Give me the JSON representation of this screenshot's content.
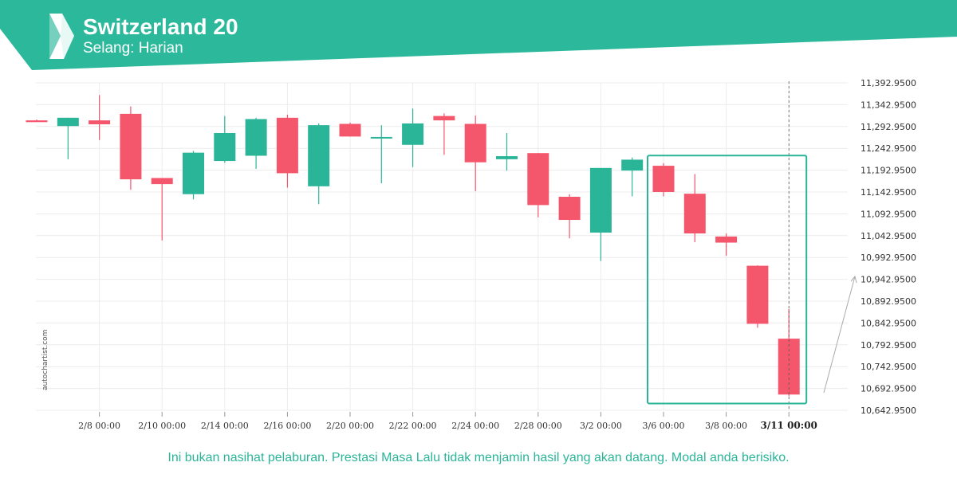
{
  "header": {
    "title": "Switzerland 20",
    "subtitle": "Selang: Harian",
    "brand_color": "#2cb99b",
    "logo_icon": "autochartist-logo-icon"
  },
  "watermark": "autochartist.com",
  "disclaimer": "Ini bukan nasihat pelaburan. Prestasi Masa Lalu tidak menjamin hasil yang akan datang. Modal anda berisiko.",
  "chart_data": {
    "type": "candlestick",
    "title": "Switzerland 20",
    "subtitle": "Selang: Harian",
    "colors": {
      "up": "#2ab598",
      "down": "#f4566c",
      "grid": "#ececec",
      "highlight": "#2ab598"
    },
    "y_ticks": [
      "11,392.9500",
      "11,342.9500",
      "11,292.9500",
      "11,242.9500",
      "11,192.9500",
      "11,142.9500",
      "11,092.9500",
      "11,042.9500",
      "10,992.9500",
      "10,942.9500",
      "10,892.9500",
      "10,842.9500",
      "10,792.9500",
      "10,742.9500",
      "10,692.9500",
      "10,642.9500"
    ],
    "ylim": [
      10642.95,
      11392.95
    ],
    "x_ticks": [
      {
        "label": "2/8 00:00",
        "index": 2
      },
      {
        "label": "2/10 00:00",
        "index": 4
      },
      {
        "label": "2/14 00:00",
        "index": 6
      },
      {
        "label": "2/16 00:00",
        "index": 8
      },
      {
        "label": "2/20 00:00",
        "index": 10
      },
      {
        "label": "2/22 00:00",
        "index": 12
      },
      {
        "label": "2/24 00:00",
        "index": 14
      },
      {
        "label": "2/28 00:00",
        "index": 16
      },
      {
        "label": "3/2 00:00",
        "index": 18
      },
      {
        "label": "3/6 00:00",
        "index": 20
      },
      {
        "label": "3/8 00:00",
        "index": 22
      },
      {
        "label": "3/11 00:00",
        "index": 24
      }
    ],
    "candles": [
      {
        "o": 11307,
        "h": 11309,
        "l": 11305,
        "c": 11303
      },
      {
        "o": 11294,
        "h": 11313,
        "l": 11218,
        "c": 11313
      },
      {
        "o": 11307,
        "h": 11365,
        "l": 11262,
        "c": 11298
      },
      {
        "o": 11322,
        "h": 11339,
        "l": 11148,
        "c": 11172
      },
      {
        "o": 11175,
        "h": 11175,
        "l": 11032,
        "c": 11161
      },
      {
        "o": 11138,
        "h": 11237,
        "l": 11126,
        "c": 11233
      },
      {
        "o": 11214,
        "h": 11317,
        "l": 11210,
        "c": 11278
      },
      {
        "o": 11226,
        "h": 11313,
        "l": 11196,
        "c": 11310
      },
      {
        "o": 11313,
        "h": 11320,
        "l": 11153,
        "c": 11186
      },
      {
        "o": 11156,
        "h": 11300,
        "l": 11115,
        "c": 11296
      },
      {
        "o": 11299,
        "h": 11302,
        "l": 11270,
        "c": 11270
      },
      {
        "o": 11266,
        "h": 11296,
        "l": 11163,
        "c": 11269
      },
      {
        "o": 11251,
        "h": 11334,
        "l": 11200,
        "c": 11300
      },
      {
        "o": 11317,
        "h": 11323,
        "l": 11228,
        "c": 11307
      },
      {
        "o": 11299,
        "h": 11318,
        "l": 11145,
        "c": 11211
      },
      {
        "o": 11218,
        "h": 11278,
        "l": 11192,
        "c": 11225
      },
      {
        "o": 11232,
        "h": 11232,
        "l": 11085,
        "c": 11113
      },
      {
        "o": 11132,
        "h": 11138,
        "l": 11037,
        "c": 11079
      },
      {
        "o": 11050,
        "h": 11197,
        "l": 10985,
        "c": 11198
      },
      {
        "o": 11192,
        "h": 11222,
        "l": 11133,
        "c": 11217
      },
      {
        "o": 11203,
        "h": 11209,
        "l": 11133,
        "c": 11143
      },
      {
        "o": 11139,
        "h": 11184,
        "l": 11028,
        "c": 11048
      },
      {
        "o": 11041,
        "h": 11048,
        "l": 10997,
        "c": 11027
      },
      {
        "o": 10974,
        "h": 10975,
        "l": 10832,
        "c": 10841
      },
      {
        "o": 10807,
        "h": 10875,
        "l": 10675,
        "c": 10679
      }
    ],
    "highlight_range": [
      20,
      24
    ],
    "current_index": 24,
    "grid": true
  }
}
